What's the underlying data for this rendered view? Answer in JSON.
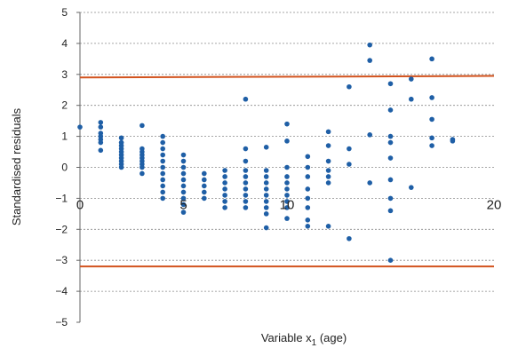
{
  "chart_data": {
    "type": "scatter",
    "title": "",
    "xlabel": "Variable x",
    "xlabel_sub": "1",
    "xlabel_tail": " (age)",
    "ylabel": "Standardised residuals",
    "xlim": [
      0,
      20
    ],
    "ylim": [
      -5,
      5
    ],
    "xticks": [
      "0",
      "5",
      "10",
      "20"
    ],
    "xtick_values": [
      0,
      5,
      10,
      20
    ],
    "yticks": [
      "5",
      "4",
      "3",
      "2",
      "1",
      "0",
      "−1",
      "−2",
      "−3",
      "−4",
      "−5"
    ],
    "ytick_values": [
      5,
      4,
      3,
      2,
      1,
      0,
      -1,
      -2,
      -3,
      -4,
      -5
    ],
    "grid": true,
    "marker_color": "#1f5fa6",
    "reference_lines": [
      {
        "y_start": 2.9,
        "y_end": 2.95,
        "color": "#d2531e"
      },
      {
        "y_start": -3.2,
        "y_end": -3.2,
        "color": "#d2531e"
      }
    ],
    "series": [
      {
        "points": [
          [
            0,
            1.3
          ],
          [
            1,
            1.45
          ],
          [
            1,
            1.3
          ],
          [
            1,
            1.1
          ],
          [
            1,
            1.0
          ],
          [
            1,
            0.9
          ],
          [
            1,
            0.8
          ],
          [
            1,
            0.55
          ],
          [
            2,
            0.95
          ],
          [
            2,
            0.8
          ],
          [
            2,
            0.7
          ],
          [
            2,
            0.6
          ],
          [
            2,
            0.5
          ],
          [
            2,
            0.4
          ],
          [
            2,
            0.3
          ],
          [
            2,
            0.2
          ],
          [
            2,
            0.1
          ],
          [
            2,
            0.0
          ],
          [
            3,
            1.35
          ],
          [
            3,
            0.6
          ],
          [
            3,
            0.5
          ],
          [
            3,
            0.4
          ],
          [
            3,
            0.3
          ],
          [
            3,
            0.2
          ],
          [
            3,
            0.1
          ],
          [
            3,
            0.0
          ],
          [
            3,
            -0.2
          ],
          [
            4,
            1.0
          ],
          [
            4,
            0.8
          ],
          [
            4,
            0.6
          ],
          [
            4,
            0.4
          ],
          [
            4,
            0.2
          ],
          [
            4,
            0.0
          ],
          [
            4,
            -0.2
          ],
          [
            4,
            -0.4
          ],
          [
            4,
            -0.6
          ],
          [
            4,
            -0.8
          ],
          [
            4,
            -1.0
          ],
          [
            5,
            0.4
          ],
          [
            5,
            0.2
          ],
          [
            5,
            0.0
          ],
          [
            5,
            -0.2
          ],
          [
            5,
            -0.4
          ],
          [
            5,
            -0.6
          ],
          [
            5,
            -0.8
          ],
          [
            5,
            -1.0
          ],
          [
            5,
            -1.2
          ],
          [
            5,
            -1.45
          ],
          [
            6,
            -0.2
          ],
          [
            6,
            -0.4
          ],
          [
            6,
            -0.6
          ],
          [
            6,
            -0.8
          ],
          [
            6,
            -1.0
          ],
          [
            7,
            -0.1
          ],
          [
            7,
            -0.3
          ],
          [
            7,
            -0.5
          ],
          [
            7,
            -0.7
          ],
          [
            7,
            -0.9
          ],
          [
            7,
            -1.1
          ],
          [
            7,
            -1.3
          ],
          [
            8,
            2.2
          ],
          [
            8,
            0.6
          ],
          [
            8,
            0.2
          ],
          [
            8,
            -0.1
          ],
          [
            8,
            -0.3
          ],
          [
            8,
            -0.5
          ],
          [
            8,
            -0.7
          ],
          [
            8,
            -0.9
          ],
          [
            8,
            -1.1
          ],
          [
            8,
            -1.3
          ],
          [
            9,
            0.65
          ],
          [
            9,
            -0.1
          ],
          [
            9,
            -0.3
          ],
          [
            9,
            -0.5
          ],
          [
            9,
            -0.7
          ],
          [
            9,
            -0.9
          ],
          [
            9,
            -1.1
          ],
          [
            9,
            -1.3
          ],
          [
            9,
            -1.5
          ],
          [
            9,
            -1.95
          ],
          [
            10,
            1.4
          ],
          [
            10,
            0.85
          ],
          [
            10,
            0.0
          ],
          [
            10,
            -0.3
          ],
          [
            10,
            -0.5
          ],
          [
            10,
            -0.7
          ],
          [
            10,
            -0.9
          ],
          [
            10,
            -1.1
          ],
          [
            10,
            -1.3
          ],
          [
            10,
            -1.65
          ],
          [
            11,
            0.35
          ],
          [
            11,
            0.0
          ],
          [
            11,
            -0.3
          ],
          [
            11,
            -0.7
          ],
          [
            11,
            -1.0
          ],
          [
            11,
            -1.3
          ],
          [
            11,
            -1.7
          ],
          [
            11,
            -1.9
          ],
          [
            12,
            1.15
          ],
          [
            12,
            0.7
          ],
          [
            12,
            0.2
          ],
          [
            12,
            -0.1
          ],
          [
            12,
            -0.3
          ],
          [
            12,
            -0.5
          ],
          [
            12,
            -1.9
          ],
          [
            13,
            2.6
          ],
          [
            13,
            0.6
          ],
          [
            13,
            0.1
          ],
          [
            13,
            -2.3
          ],
          [
            14,
            3.95
          ],
          [
            14,
            3.45
          ],
          [
            14,
            1.05
          ],
          [
            14,
            -0.5
          ],
          [
            15,
            2.7
          ],
          [
            15,
            1.85
          ],
          [
            15,
            1.0
          ],
          [
            15,
            0.8
          ],
          [
            15,
            0.3
          ],
          [
            15,
            -0.4
          ],
          [
            15,
            -1.0
          ],
          [
            15,
            -1.4
          ],
          [
            15,
            -3.0
          ],
          [
            16,
            2.85
          ],
          [
            16,
            2.2
          ],
          [
            16,
            -0.65
          ],
          [
            17,
            3.5
          ],
          [
            17,
            2.25
          ],
          [
            17,
            1.55
          ],
          [
            17,
            0.95
          ],
          [
            17,
            0.7
          ],
          [
            18,
            0.9
          ],
          [
            18,
            0.85
          ]
        ]
      }
    ]
  }
}
